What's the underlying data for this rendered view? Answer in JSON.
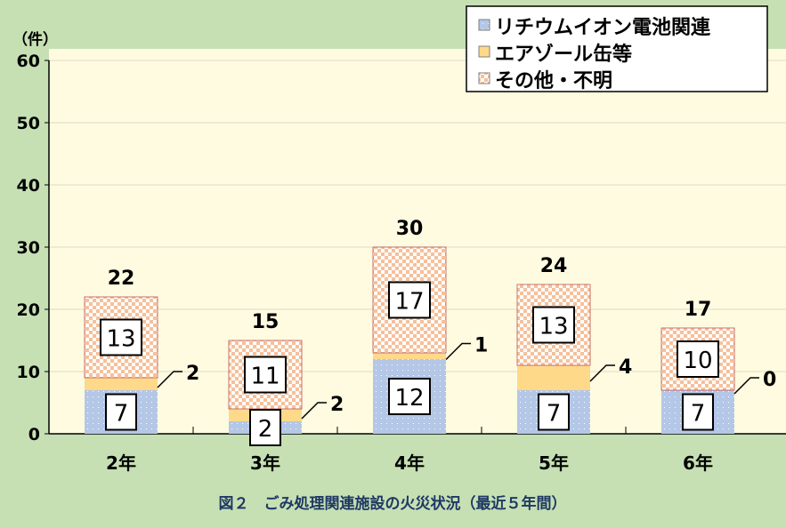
{
  "chart_data": {
    "type": "bar",
    "stacked": true,
    "title": "図２　ごみ処理関連施設の火災状況（最近５年間）",
    "ylabel": "（件）",
    "xlabel": "",
    "ylim": [
      0,
      60
    ],
    "yticks": [
      0,
      10,
      20,
      30,
      40,
      50,
      60
    ],
    "grid": true,
    "legend_position": "top-right",
    "categories": [
      "2年",
      "3年",
      "4年",
      "5年",
      "6年"
    ],
    "series": [
      {
        "name": "リチウムイオン電池関連",
        "values": [
          7,
          2,
          12,
          7,
          7
        ],
        "color": "#b4c7e7"
      },
      {
        "name": "エアゾール缶等",
        "values": [
          2,
          2,
          1,
          4,
          0
        ],
        "color": "#ffd98a"
      },
      {
        "name": "その他・不明",
        "values": [
          13,
          11,
          17,
          13,
          10
        ],
        "color": "#f4b183"
      }
    ],
    "totals": [
      22,
      15,
      30,
      24,
      17
    ]
  }
}
